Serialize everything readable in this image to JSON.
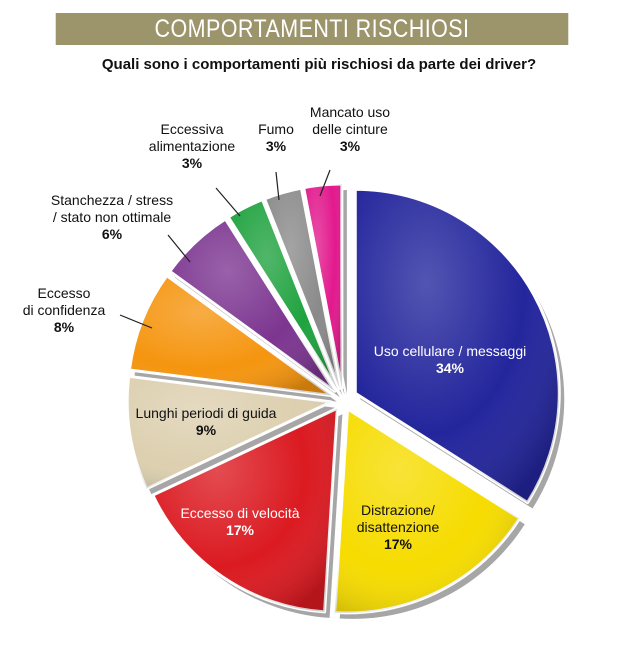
{
  "header": {
    "title": "COMPORTAMENTI RISCHIOSI",
    "question": "Quali sono i comportamenti più rischiosi da parte dei driver?"
  },
  "chart_data": {
    "type": "pie",
    "title": "COMPORTAMENTI RISCHIOSI",
    "subtitle": "Quali sono i comportamenti più rischiosi da parte dei driver?",
    "unit": "%",
    "slices": [
      {
        "label": "Uso cellulare / messaggi",
        "label_lines": [
          "Uso cellulare / messaggi"
        ],
        "value": 34,
        "value_label": "34%",
        "color": "#23259c"
      },
      {
        "label": "Distrazione/ disattenzione",
        "label_lines": [
          "Distrazione/",
          "disattenzione"
        ],
        "value": 17,
        "value_label": "17%",
        "color": "#f6dc00"
      },
      {
        "label": "Eccesso di velocità",
        "label_lines": [
          "Eccesso di velocità"
        ],
        "value": 17,
        "value_label": "17%",
        "color": "#db1a21"
      },
      {
        "label": "Lunghi periodi di guida",
        "label_lines": [
          "Lunghi periodi di guida"
        ],
        "value": 9,
        "value_label": "9%",
        "color": "#ddd0b0"
      },
      {
        "label": "Eccesso di confidenza",
        "label_lines": [
          "Eccesso",
          "di confidenza"
        ],
        "value": 8,
        "value_label": "8%",
        "color": "#f5950f"
      },
      {
        "label": "Stanchezza / stress / stato non ottimale",
        "label_lines": [
          "Stanchezza / stress",
          "/ stato non ottimale"
        ],
        "value": 6,
        "value_label": "6%",
        "color": "#7c3590"
      },
      {
        "label": "Eccessiva alimentazione",
        "label_lines": [
          "Eccessiva",
          "alimentazione"
        ],
        "value": 3,
        "value_label": "3%",
        "color": "#1fa23f"
      },
      {
        "label": "Fumo",
        "label_lines": [
          "Fumo"
        ],
        "value": 3,
        "value_label": "3%",
        "color": "#8a8a8a"
      },
      {
        "label": "Mancato uso delle cinture",
        "label_lines": [
          "Mancato uso",
          "delle cinture"
        ],
        "value": 3,
        "value_label": "3%",
        "color": "#e2198d"
      }
    ]
  }
}
